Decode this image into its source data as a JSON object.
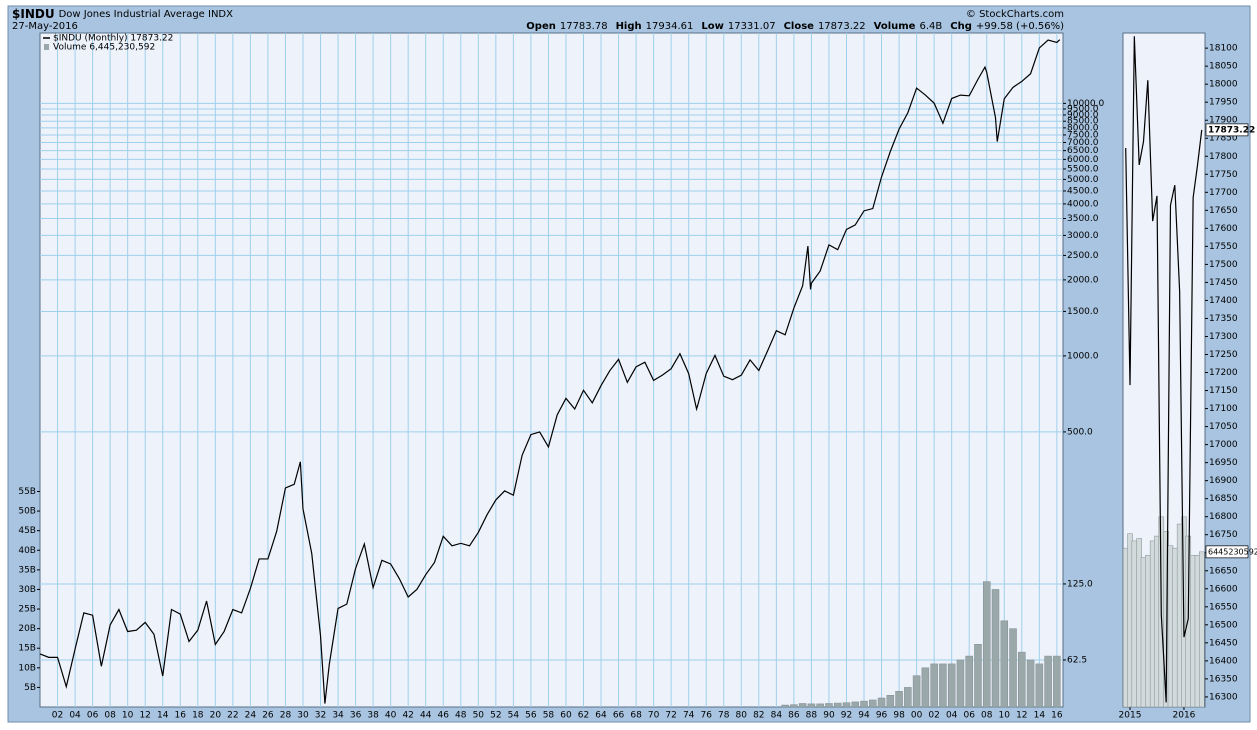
{
  "header": {
    "symbol": "$INDU",
    "name": "Dow Jones Industrial Average INDX",
    "date": "27-May-2016",
    "quote": [
      {
        "label": "Open",
        "value": 17783.78
      },
      {
        "label": "High",
        "value": 17934.61
      },
      {
        "label": "Low",
        "value": 17331.07
      },
      {
        "label": "Close",
        "value": 17873.22
      },
      {
        "label": "Volume",
        "value": "6.4B"
      },
      {
        "label": "Chg",
        "value": "+99.58 (+0.56%)"
      }
    ],
    "credit": "© StockCharts.com"
  },
  "chart_data": [
    {
      "type": "line",
      "log_y": true,
      "grid": true,
      "legend": "upper left",
      "xlim": [
        1900,
        2016.7
      ],
      "xticks": [
        {
          "value": 1902,
          "label": "02"
        },
        {
          "value": 1904,
          "label": "04"
        },
        {
          "value": 1906,
          "label": "06"
        },
        {
          "value": 1908,
          "label": "08"
        },
        {
          "value": 1910,
          "label": "10"
        },
        {
          "value": 1912,
          "label": "12"
        },
        {
          "value": 1914,
          "label": "14"
        },
        {
          "value": 1916,
          "label": "16"
        },
        {
          "value": 1918,
          "label": "18"
        },
        {
          "value": 1920,
          "label": "20"
        },
        {
          "value": 1922,
          "label": "22"
        },
        {
          "value": 1924,
          "label": "24"
        },
        {
          "value": 1926,
          "label": "26"
        },
        {
          "value": 1928,
          "label": "28"
        },
        {
          "value": 1930,
          "label": "30"
        },
        {
          "value": 1932,
          "label": "32"
        },
        {
          "value": 1934,
          "label": "34"
        },
        {
          "value": 1936,
          "label": "36"
        },
        {
          "value": 1938,
          "label": "38"
        },
        {
          "value": 1940,
          "label": "40"
        },
        {
          "value": 1942,
          "label": "42"
        },
        {
          "value": 1944,
          "label": "44"
        },
        {
          "value": 1946,
          "label": "46"
        },
        {
          "value": 1948,
          "label": "48"
        },
        {
          "value": 1950,
          "label": "50"
        },
        {
          "value": 1952,
          "label": "52"
        },
        {
          "value": 1954,
          "label": "54"
        },
        {
          "value": 1956,
          "label": "56"
        },
        {
          "value": 1958,
          "label": "58"
        },
        {
          "value": 1960,
          "label": "60"
        },
        {
          "value": 1962,
          "label": "62"
        },
        {
          "value": 1964,
          "label": "64"
        },
        {
          "value": 1966,
          "label": "66"
        },
        {
          "value": 1968,
          "label": "68"
        },
        {
          "value": 1970,
          "label": "70"
        },
        {
          "value": 1972,
          "label": "72"
        },
        {
          "value": 1974,
          "label": "74"
        },
        {
          "value": 1976,
          "label": "76"
        },
        {
          "value": 1978,
          "label": "78"
        },
        {
          "value": 1980,
          "label": "80"
        },
        {
          "value": 1982,
          "label": "82"
        },
        {
          "value": 1984,
          "label": "84"
        },
        {
          "value": 1986,
          "label": "86"
        },
        {
          "value": 1988,
          "label": "88"
        },
        {
          "value": 1990,
          "label": "90"
        },
        {
          "value": 1992,
          "label": "92"
        },
        {
          "value": 1994,
          "label": "94"
        },
        {
          "value": 1996,
          "label": "96"
        },
        {
          "value": 1998,
          "label": "98"
        },
        {
          "value": 2000,
          "label": "00"
        },
        {
          "value": 2002,
          "label": "02"
        },
        {
          "value": 2004,
          "label": "04"
        },
        {
          "value": 2006,
          "label": "06"
        },
        {
          "value": 2008,
          "label": "08"
        },
        {
          "value": 2010,
          "label": "10"
        },
        {
          "value": 2012,
          "label": "12"
        },
        {
          "value": 2014,
          "label": "14"
        },
        {
          "value": 2016,
          "label": "16"
        }
      ],
      "ylim": [
        40.7,
        19000
      ],
      "yticks": [
        62.5,
        {
          "value": 125,
          "label": "125.0"
        },
        {
          "value": 500,
          "label": "500.0"
        },
        {
          "value": 1000,
          "label": "1000.0"
        },
        {
          "value": 1500,
          "label": "1500.0"
        },
        {
          "value": 2000,
          "label": "2000.0"
        },
        {
          "value": 2500,
          "label": "2500.0"
        },
        {
          "value": 3000,
          "label": "3000.0"
        },
        {
          "value": 3500,
          "label": "3500.0"
        },
        {
          "value": 4000,
          "label": "4000.0"
        },
        {
          "value": 4500,
          "label": "4500.0"
        },
        {
          "value": 5000,
          "label": "5000.0"
        },
        {
          "value": 5500,
          "label": "5500.0"
        },
        {
          "value": 6000,
          "label": "6000.0"
        },
        {
          "value": 6500,
          "label": "6500.0"
        },
        {
          "value": 7000,
          "label": "7000.0"
        },
        {
          "value": 7500,
          "label": "7500.0"
        },
        {
          "value": 8000,
          "label": "8000.0"
        },
        {
          "value": 8500,
          "label": "8500.0"
        },
        {
          "value": 9000,
          "label": "9000.0"
        },
        {
          "value": 9500,
          "label": "9500.0"
        },
        {
          "value": 10000,
          "label": "10000.0"
        }
      ],
      "y2lim": [
        0,
        172
      ],
      "y2ticks": [
        {
          "value": 5,
          "label": "5B"
        },
        {
          "value": 10,
          "label": "10B"
        },
        {
          "value": 15,
          "label": "15B"
        },
        {
          "value": 20,
          "label": "20B"
        },
        {
          "value": 25,
          "label": "25B"
        },
        {
          "value": 30,
          "label": "30B"
        },
        {
          "value": 35,
          "label": "35B"
        },
        {
          "value": 40,
          "label": "40B"
        },
        {
          "value": 45,
          "label": "45B"
        },
        {
          "value": 50,
          "label": "50B"
        },
        {
          "value": 55,
          "label": "55B"
        }
      ],
      "series": [
        {
          "name": "$INDU (Monthly) 17873.22",
          "type": "line",
          "color": "#000000",
          "x": [
            1900,
            1901,
            1902,
            1903,
            1904,
            1905,
            1906,
            1907,
            1908,
            1909,
            1910,
            1911,
            1912,
            1913,
            1914,
            1915,
            1916,
            1917,
            1918,
            1919,
            1920,
            1921,
            1922,
            1923,
            1924,
            1925,
            1926,
            1927,
            1928,
            1929,
            1929.7,
            1930,
            1931,
            1932,
            1932.5,
            1933,
            1934,
            1935,
            1936,
            1937,
            1938,
            1939,
            1940,
            1941,
            1942,
            1943,
            1944,
            1945,
            1946,
            1947,
            1948,
            1949,
            1950,
            1951,
            1952,
            1953,
            1954,
            1955,
            1956,
            1957,
            1958,
            1959,
            1960,
            1961,
            1962,
            1963,
            1964,
            1965,
            1966,
            1967,
            1968,
            1969,
            1970,
            1971,
            1972,
            1973,
            1974,
            1974.9,
            1975,
            1976,
            1977,
            1978,
            1979,
            1980,
            1981,
            1982,
            1983,
            1984,
            1985,
            1986,
            1987,
            1987.6,
            1987.9,
            1988,
            1989,
            1990,
            1991,
            1992,
            1993,
            1994,
            1995,
            1996,
            1997,
            1998,
            1999,
            2000,
            2001,
            2002,
            2003,
            2004,
            2005,
            2006,
            2007,
            2007.8,
            2008,
            2009,
            2009.2,
            2010,
            2011,
            2012,
            2013,
            2014,
            2015,
            2016,
            2016.33
          ],
          "values": [
            66,
            64,
            64,
            49,
            69,
            96,
            94,
            59,
            86,
            99,
            81,
            82,
            88,
            79,
            54,
            99,
            95,
            74,
            82,
            107,
            72,
            81,
            99,
            96,
            120,
            157,
            157,
            202,
            300,
            310,
            381,
            248,
            165,
            78,
            42,
            60,
            100,
            104,
            144,
            180,
            121,
            155,
            150,
            131,
            111,
            119,
            136,
            152,
            193,
            177,
            181,
            177,
            200,
            235,
            269,
            292,
            281,
            404,
            488,
            500,
            436,
            584,
            679,
            616,
            731,
            652,
            763,
            874,
            969,
            786,
            905,
            944,
            800,
            839,
            890,
            1020,
            851,
            616,
            632,
            852,
            1005,
            831,
            805,
            839,
            964,
            875,
            1047,
            1259,
            1212,
            1547,
            1896,
            2722,
            1833,
            1939,
            2169,
            2753,
            2634,
            3169,
            3301,
            3754,
            3834,
            5117,
            6448,
            7908,
            9181,
            11497,
            10787,
            10022,
            8342,
            10454,
            10783,
            10718,
            12463,
            13930,
            13265,
            8776,
            7062,
            10428,
            11578,
            12218,
            13104,
            16577,
            17823,
            17425,
            17873.22
          ]
        },
        {
          "name": "Volume 6,445,230,592",
          "type": "bar",
          "axis": "y2",
          "color": "#9aa8aa",
          "x": [
            1985,
            1986,
            1987,
            1988,
            1989,
            1990,
            1991,
            1992,
            1993,
            1994,
            1995,
            1996,
            1997,
            1998,
            1999,
            2000,
            2001,
            2002,
            2003,
            2004,
            2005,
            2006,
            2007,
            2008,
            2009,
            2010,
            2011,
            2012,
            2013,
            2014,
            2015,
            2016
          ],
          "values": [
            0.5,
            0.6,
            0.9,
            0.8,
            0.8,
            0.9,
            1.0,
            1.1,
            1.3,
            1.5,
            1.8,
            2.3,
            3,
            4,
            5,
            8,
            10,
            11,
            11,
            11,
            12,
            13,
            16,
            32,
            30,
            22,
            20,
            14,
            12,
            11,
            13,
            13
          ]
        }
      ]
    },
    {
      "type": "line",
      "log_y": false,
      "grid": false,
      "value_tags": true,
      "xlim": [
        2014.87,
        2016.39
      ],
      "xticks": [
        2015,
        2016
      ],
      "ylim": [
        16272,
        18142
      ],
      "yticks": [
        16300,
        16350,
        16400,
        16450,
        16500,
        16550,
        16600,
        16650,
        16700,
        16750,
        16800,
        16850,
        16900,
        16950,
        17000,
        17050,
        17100,
        17150,
        17200,
        17250,
        17300,
        17350,
        17400,
        17450,
        17500,
        17550,
        17600,
        17650,
        17700,
        17750,
        17800,
        17850,
        17900,
        17950,
        18000,
        18050,
        18100
      ],
      "y2lim": [
        0,
        28000000000
      ],
      "series": [
        {
          "name": "$INDU",
          "type": "line",
          "color": "#000000",
          "x": [
            2014.92,
            2015.0,
            2015.08,
            2015.17,
            2015.25,
            2015.33,
            2015.42,
            2015.5,
            2015.58,
            2015.67,
            2015.75,
            2015.83,
            2015.92,
            2016.0,
            2016.08,
            2016.17,
            2016.25,
            2016.33
          ],
          "values": [
            17823,
            17165,
            18133,
            17776,
            17841,
            18011,
            17620,
            17690,
            16528,
            16285,
            17664,
            17720,
            17425,
            16466,
            16517,
            17685,
            17774,
            17873.22
          ]
        },
        {
          "name": "Volume",
          "type": "bar",
          "axis": "y2",
          "color": "#d3dadc",
          "x": [
            2014.92,
            2015.0,
            2015.08,
            2015.17,
            2015.25,
            2015.33,
            2015.42,
            2015.5,
            2015.58,
            2015.67,
            2015.75,
            2015.83,
            2015.92,
            2016.0,
            2016.08,
            2016.17,
            2016.25,
            2016.33
          ],
          "values": [
            6600000000,
            7200000000,
            6900000000,
            7000000000,
            6200000000,
            6300000000,
            6900000000,
            7100000000,
            7900000000,
            7300000000,
            6700000000,
            6600000000,
            7600000000,
            7900000000,
            7100000000,
            6300000000,
            6300000000,
            6445230592
          ]
        }
      ]
    }
  ]
}
